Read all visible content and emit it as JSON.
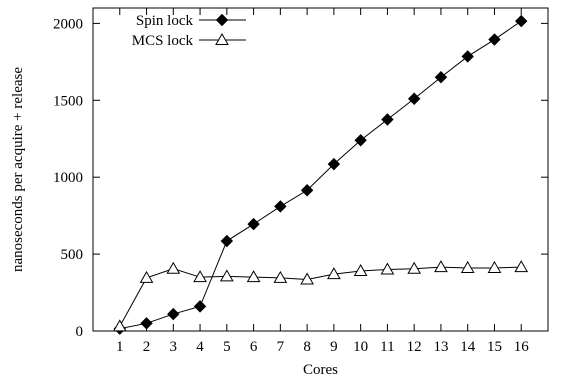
{
  "chart_data": {
    "type": "line",
    "xlabel": "Cores",
    "ylabel": "nanoseconds per acquire + release",
    "xlim": [
      0,
      17
    ],
    "ylim": [
      0,
      2100
    ],
    "x_ticks": [
      1,
      2,
      3,
      4,
      5,
      6,
      7,
      8,
      9,
      10,
      11,
      12,
      13,
      14,
      15,
      16
    ],
    "y_ticks": [
      0,
      500,
      1000,
      1500,
      2000
    ],
    "legend_position": "top-left",
    "series": [
      {
        "name": "Spin lock",
        "marker": "filled-diamond",
        "x": [
          1,
          2,
          3,
          4,
          5,
          6,
          7,
          8,
          9,
          10,
          11,
          12,
          13,
          14,
          15,
          16
        ],
        "y": [
          15,
          50,
          110,
          160,
          585,
          695,
          810,
          915,
          1085,
          1240,
          1375,
          1510,
          1650,
          1785,
          1895,
          2015
        ]
      },
      {
        "name": "MCS lock",
        "marker": "open-triangle",
        "x": [
          1,
          2,
          3,
          4,
          5,
          6,
          7,
          8,
          9,
          10,
          11,
          12,
          13,
          14,
          15,
          16
        ],
        "y": [
          30,
          345,
          405,
          350,
          355,
          350,
          345,
          335,
          370,
          390,
          400,
          405,
          415,
          410,
          410,
          415
        ]
      }
    ]
  }
}
